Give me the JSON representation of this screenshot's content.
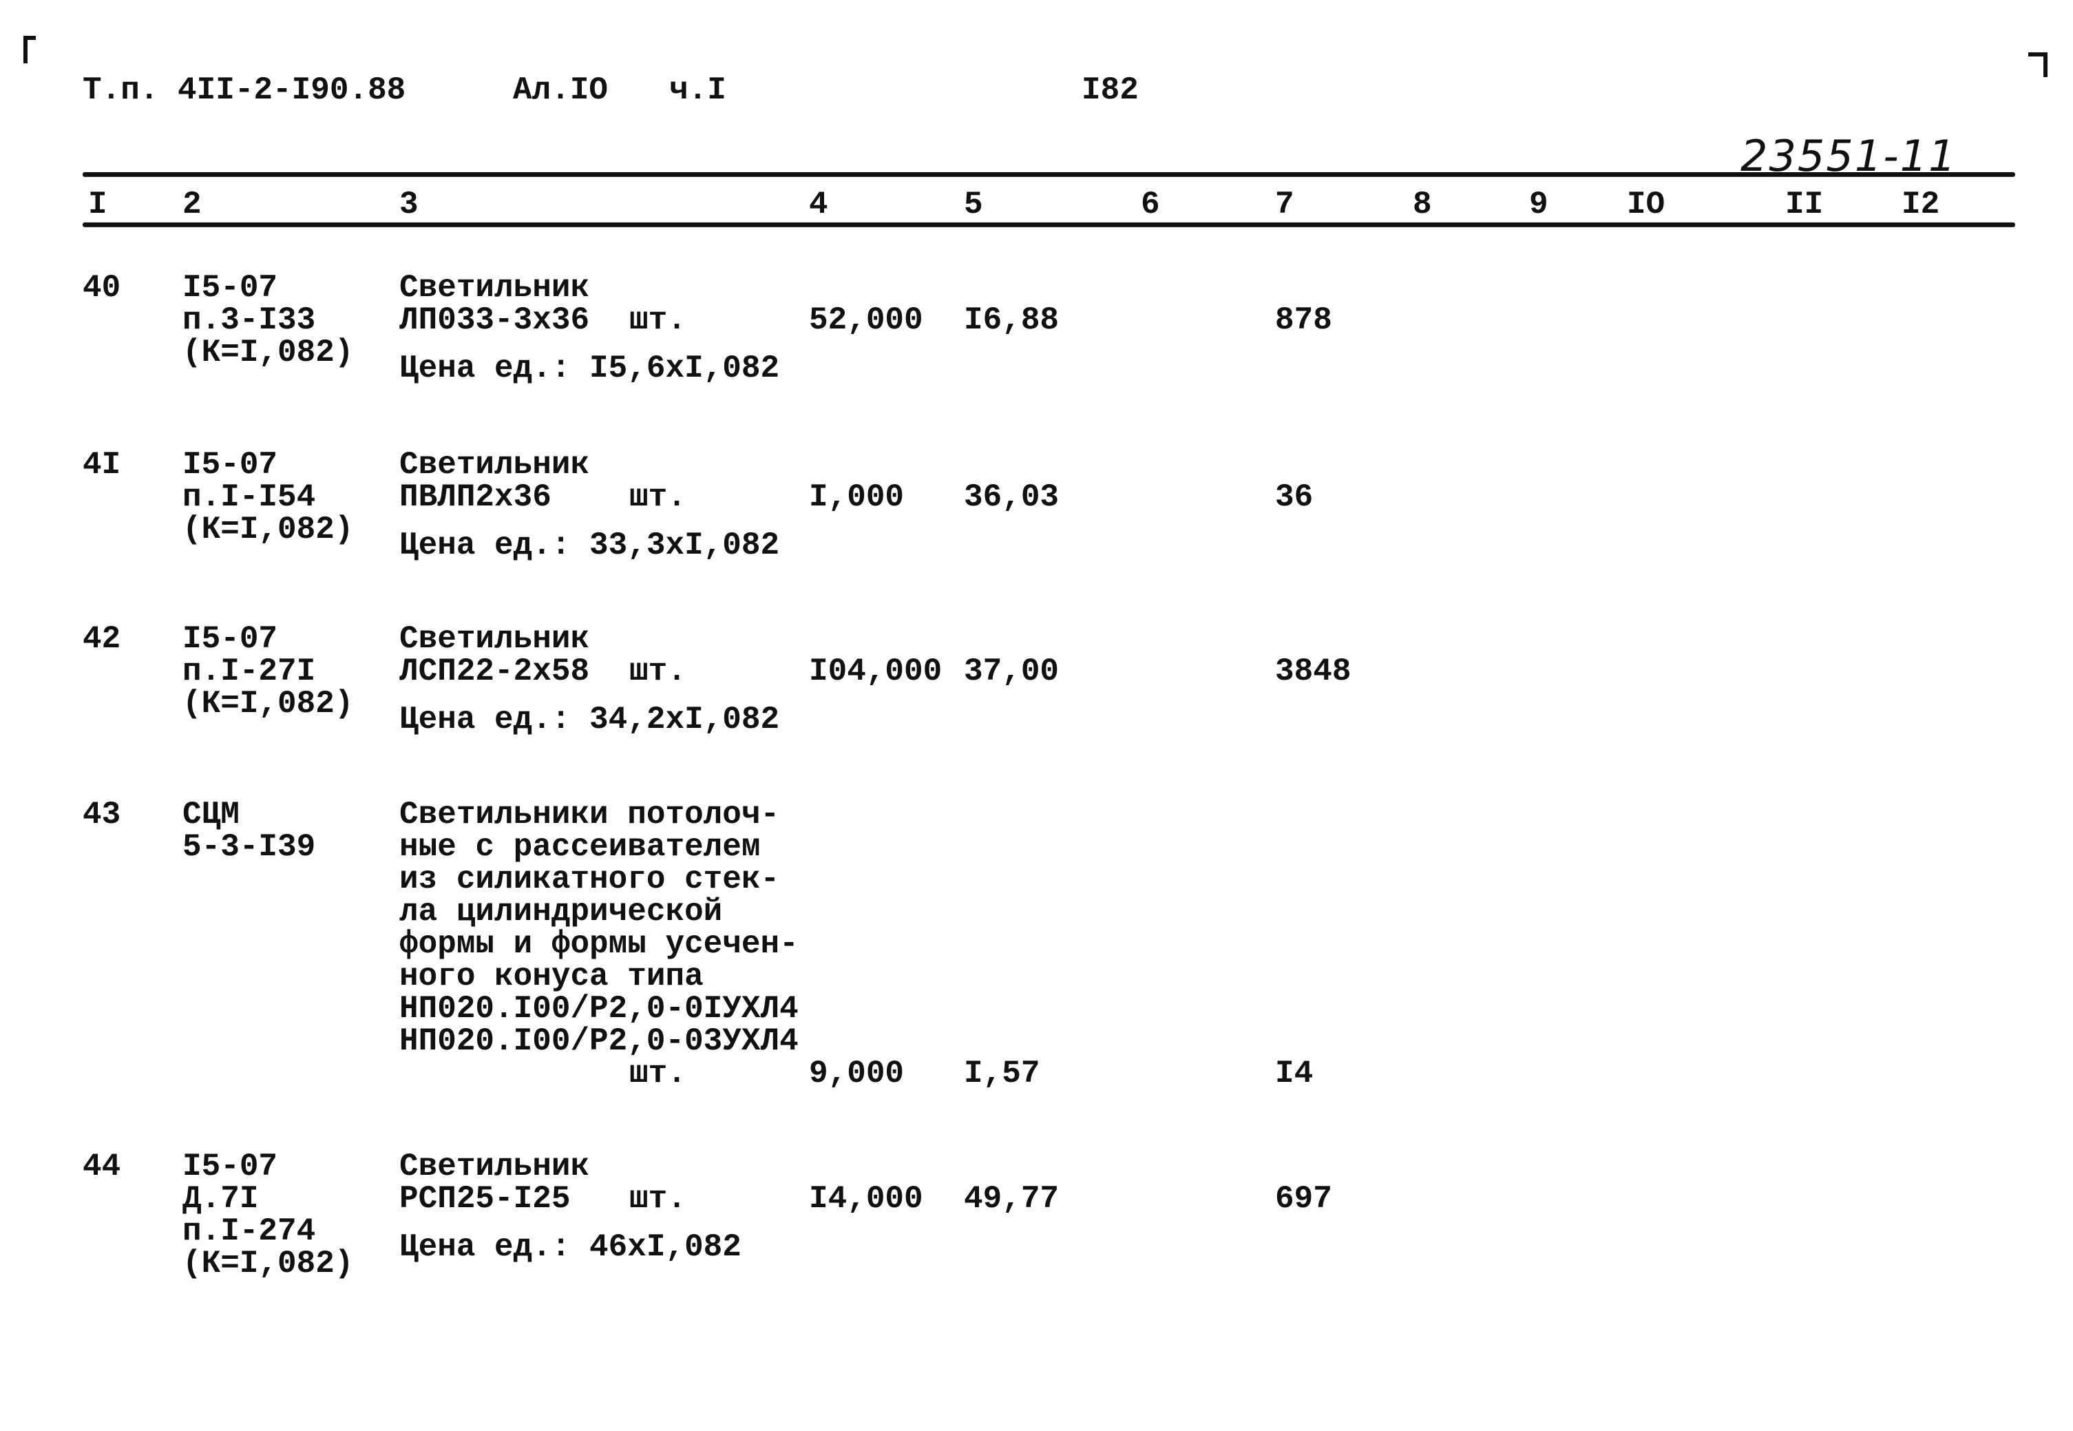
{
  "header": {
    "project": "Т.п. 4II-2-I90.88",
    "album": "Ал.IО",
    "part": "ч.I",
    "page": "I82",
    "handwritten_number": "23551-11"
  },
  "columns": [
    "I",
    "2",
    "3",
    "4",
    "5",
    "6",
    "7",
    "8",
    "9",
    "IО",
    "II",
    "I2"
  ],
  "items": [
    {
      "num": "40",
      "code": [
        "I5-07",
        "п.3-I33",
        "(К=I,082)"
      ],
      "desc": [
        "Светильник",
        "ЛП033-3х36"
      ],
      "unit": "шт.",
      "qty": "52,000",
      "price": "I6,88",
      "total": "878",
      "note": "Цена ед.: I5,6хI,082"
    },
    {
      "num": "4I",
      "code": [
        "I5-07",
        "п.I-I54",
        "(К=I,082)"
      ],
      "desc": [
        "Светильник",
        "ПВЛП2х36"
      ],
      "unit": "шт.",
      "qty": "I,000",
      "price": "36,03",
      "total": "36",
      "note": "Цена ед.: 33,3хI,082"
    },
    {
      "num": "42",
      "code": [
        "I5-07",
        "п.I-27I",
        "(К=I,082)"
      ],
      "desc": [
        "Светильник",
        "ЛСП22-2х58"
      ],
      "unit": "шт.",
      "qty": "I04,000",
      "price": "37,00",
      "total": "3848",
      "note": "Цена ед.: 34,2хI,082"
    },
    {
      "num": "43",
      "code": [
        "СЦМ",
        "5-3-I39"
      ],
      "desc": [
        "Светильники потолоч-",
        "ные с рассеивателем",
        "из силикатного стек-",
        "ла цилиндрической",
        "формы и формы усечен-",
        "ного конуса типа",
        "НП020.I00/Р2,0-0IУХЛ4",
        "НП020.I00/Р2,0-03УХЛ4"
      ],
      "unit": "шт.",
      "qty": "9,000",
      "price": "I,57",
      "total": "I4",
      "note": ""
    },
    {
      "num": "44",
      "code": [
        "I5-07",
        "Д.7I",
        "п.I-274",
        "(К=I,082)"
      ],
      "desc": [
        "Светильник",
        "РСП25-I25"
      ],
      "unit": "шт.",
      "qty": "I4,000",
      "price": "49,77",
      "total": "697",
      "note": "Цена ед.: 46хI,082"
    }
  ]
}
